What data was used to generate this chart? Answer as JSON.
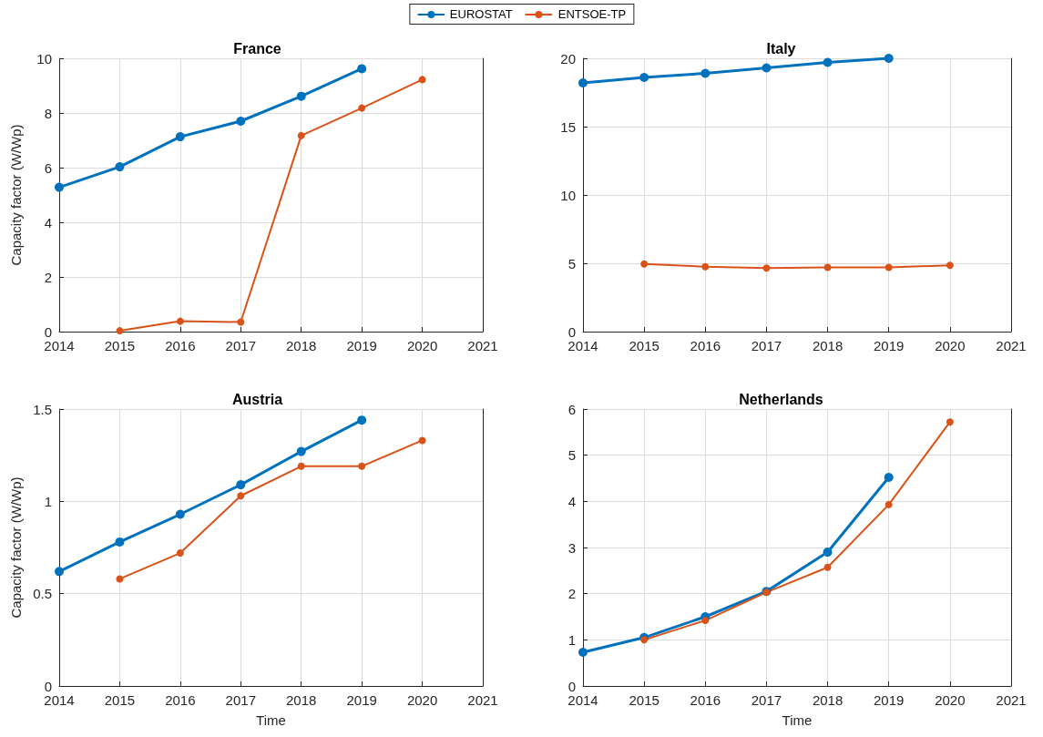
{
  "chart_data": [
    {
      "type": "line",
      "title": "France",
      "ylabel": "Capacity factor (W/Wp)",
      "x": [
        2014,
        2015,
        2016,
        2017,
        2018,
        2019,
        2020
      ],
      "legend": "top",
      "grid": true,
      "marker": "circle",
      "line_style": "solid",
      "xlim": [
        2014,
        2021
      ],
      "xticks": [
        2014,
        2015,
        2016,
        2017,
        2018,
        2019,
        2020,
        2021
      ],
      "ylim": [
        0,
        10
      ],
      "yticks": [
        0,
        2,
        4,
        6,
        8,
        10
      ],
      "series": [
        {
          "name": "EUROSTAT",
          "color": "#0072bd",
          "values": [
            5.28,
            6.03,
            7.13,
            7.7,
            8.61,
            9.62,
            null
          ]
        },
        {
          "name": "ENTSOE-TP",
          "color": "#d95319",
          "values": [
            null,
            0.03,
            0.38,
            0.35,
            7.17,
            8.18,
            9.22
          ]
        }
      ]
    },
    {
      "type": "line",
      "title": "Italy",
      "x": [
        2014,
        2015,
        2016,
        2017,
        2018,
        2019,
        2020
      ],
      "legend": false,
      "grid": true,
      "marker": "circle",
      "line_style": "solid",
      "xlim": [
        2014,
        2021
      ],
      "xticks": [
        2014,
        2015,
        2016,
        2017,
        2018,
        2019,
        2020,
        2021
      ],
      "ylim": [
        0,
        20
      ],
      "yticks": [
        0,
        5,
        10,
        15,
        20
      ],
      "series": [
        {
          "color": "#0072bd",
          "values": [
            18.2,
            18.6,
            18.9,
            19.3,
            19.7,
            20.0,
            null
          ]
        },
        {
          "color": "#d95319",
          "values": [
            null,
            4.95,
            4.75,
            4.65,
            4.7,
            4.7,
            4.85
          ]
        }
      ]
    },
    {
      "type": "line",
      "title": "Austria",
      "ylabel": "Capacity factor (W/Wp)",
      "xlabel": "Time",
      "x": [
        2014,
        2015,
        2016,
        2017,
        2018,
        2019,
        2020
      ],
      "legend": false,
      "grid": true,
      "marker": "circle",
      "line_style": "solid",
      "xlim": [
        2014,
        2021
      ],
      "xticks": [
        2014,
        2015,
        2016,
        2017,
        2018,
        2019,
        2020,
        2021
      ],
      "ylim": [
        0,
        1.5
      ],
      "yticks": [
        0,
        0.5,
        1,
        1.5
      ],
      "series": [
        {
          "color": "#0072bd",
          "values": [
            0.62,
            0.78,
            0.93,
            1.09,
            1.27,
            1.44,
            null
          ]
        },
        {
          "color": "#d95319",
          "values": [
            null,
            0.58,
            0.72,
            1.03,
            1.19,
            1.19,
            1.33
          ]
        }
      ]
    },
    {
      "type": "line",
      "title": "Netherlands",
      "xlabel": "Time",
      "x": [
        2014,
        2015,
        2016,
        2017,
        2018,
        2019,
        2020
      ],
      "legend": false,
      "grid": true,
      "marker": "circle",
      "line_style": "solid",
      "xlim": [
        2014,
        2021
      ],
      "xticks": [
        2014,
        2015,
        2016,
        2017,
        2018,
        2019,
        2020,
        2021
      ],
      "ylim": [
        0,
        6
      ],
      "yticks": [
        0,
        1,
        2,
        3,
        4,
        5,
        6
      ],
      "series": [
        {
          "color": "#0072bd",
          "values": [
            0.73,
            1.05,
            1.5,
            2.05,
            2.9,
            4.52,
            null
          ]
        },
        {
          "color": "#d95319",
          "values": [
            null,
            1.0,
            1.42,
            2.03,
            2.57,
            3.93,
            5.72
          ]
        }
      ]
    }
  ]
}
